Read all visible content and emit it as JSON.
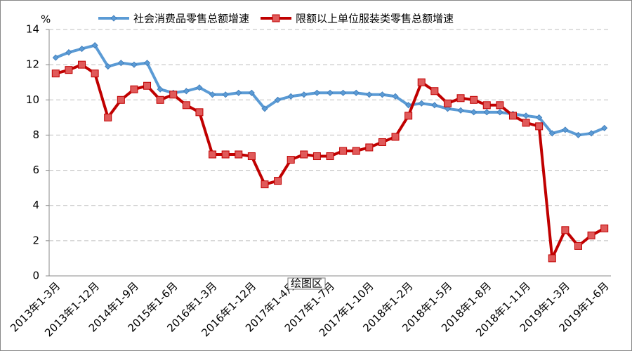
{
  "chart_data": {
    "type": "line",
    "y_unit": "%",
    "annotation": "绘图区",
    "categories": [
      "2013年1-3月",
      null,
      null,
      "2013年1-12月",
      null,
      null,
      "2014年1-9月",
      null,
      null,
      "2015年1-6月",
      null,
      null,
      "2016年1-3月",
      null,
      null,
      "2016年1-12月",
      null,
      null,
      "2017年1-4月",
      null,
      null,
      "2017年1-7月",
      null,
      null,
      "2017年1-10月",
      null,
      null,
      "2018年1-2月",
      null,
      null,
      "2018年1-5月",
      null,
      null,
      "2018年1-8月",
      null,
      null,
      "2018年1-11月",
      null,
      null,
      "2019年1-3月",
      null,
      null,
      "2019年1-6月"
    ],
    "series": [
      {
        "name": "社会消费品零售总额增速",
        "color": "#5b9bd5",
        "marker": "diamond",
        "values": [
          12.4,
          12.7,
          12.9,
          13.1,
          11.9,
          12.1,
          12.0,
          12.1,
          10.6,
          10.4,
          10.5,
          10.7,
          10.3,
          10.3,
          10.4,
          10.4,
          9.5,
          10.0,
          10.2,
          10.3,
          10.4,
          10.4,
          10.4,
          10.4,
          10.3,
          10.3,
          10.2,
          9.7,
          9.8,
          9.7,
          9.5,
          9.4,
          9.3,
          9.3,
          9.3,
          9.2,
          9.1,
          9.0,
          8.1,
          8.3,
          8.0,
          8.1,
          8.4
        ]
      },
      {
        "name": "限额以上单位服装类零售总额增速",
        "color": "#c00000",
        "marker": "square",
        "values": [
          11.5,
          11.7,
          12.0,
          11.5,
          9.0,
          10.0,
          10.6,
          10.8,
          10.0,
          10.3,
          9.7,
          9.3,
          6.9,
          6.9,
          6.9,
          6.8,
          5.2,
          5.4,
          6.6,
          6.9,
          6.8,
          6.8,
          7.1,
          7.1,
          7.3,
          7.6,
          7.9,
          9.1,
          11.0,
          10.5,
          9.8,
          10.1,
          10.0,
          9.7,
          9.7,
          9.1,
          8.7,
          8.5,
          1.0,
          2.6,
          1.7,
          2.3,
          2.7
        ]
      }
    ],
    "ylim": [
      0,
      14
    ],
    "yticks": [
      0,
      2,
      4,
      6,
      8,
      10,
      12,
      14
    ],
    "grid": true,
    "legend": "top"
  }
}
